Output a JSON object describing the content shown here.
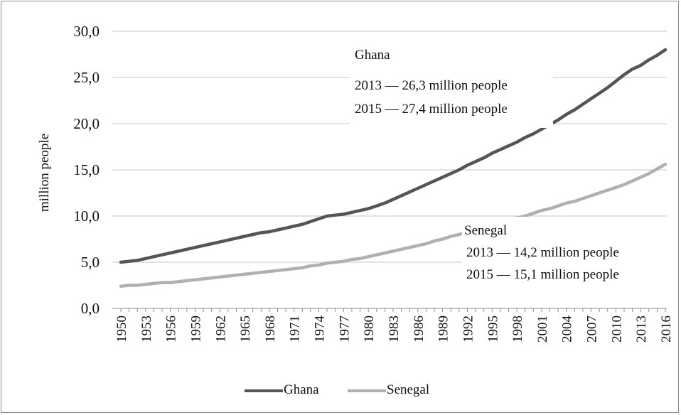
{
  "chart_data": {
    "type": "line",
    "title": "",
    "xlabel": "",
    "ylabel": "million people",
    "ylim": [
      0,
      30
    ],
    "yticks": [
      "0,0",
      "5,0",
      "10,0",
      "15,0",
      "20,0",
      "25,0",
      "30,0"
    ],
    "x_tick_labels": [
      "1950",
      "1953",
      "1956",
      "1959",
      "1962",
      "1965",
      "1968",
      "1971",
      "1974",
      "1977",
      "1980",
      "1983",
      "1986",
      "1989",
      "1992",
      "1995",
      "1998",
      "2001",
      "2004",
      "2007",
      "2010",
      "2013",
      "2016"
    ],
    "grid": "horizontal",
    "legend_position": "bottom",
    "x": [
      1950,
      1951,
      1952,
      1953,
      1954,
      1955,
      1956,
      1957,
      1958,
      1959,
      1960,
      1961,
      1962,
      1963,
      1964,
      1965,
      1966,
      1967,
      1968,
      1969,
      1970,
      1971,
      1972,
      1973,
      1974,
      1975,
      1976,
      1977,
      1978,
      1979,
      1980,
      1981,
      1982,
      1983,
      1984,
      1985,
      1986,
      1987,
      1988,
      1989,
      1990,
      1991,
      1992,
      1993,
      1994,
      1995,
      1996,
      1997,
      1998,
      1999,
      2000,
      2001,
      2002,
      2003,
      2004,
      2005,
      2006,
      2007,
      2008,
      2009,
      2010,
      2011,
      2012,
      2013,
      2014,
      2015,
      2016
    ],
    "series": [
      {
        "name": "Ghana",
        "color": "#555555",
        "values": [
          5.0,
          5.1,
          5.2,
          5.4,
          5.6,
          5.8,
          6.0,
          6.2,
          6.4,
          6.6,
          6.8,
          7.0,
          7.2,
          7.4,
          7.6,
          7.8,
          8.0,
          8.2,
          8.3,
          8.5,
          8.7,
          8.9,
          9.1,
          9.4,
          9.7,
          10.0,
          10.1,
          10.2,
          10.4,
          10.6,
          10.8,
          11.1,
          11.4,
          11.8,
          12.2,
          12.6,
          13.0,
          13.4,
          13.8,
          14.2,
          14.6,
          15.0,
          15.5,
          15.9,
          16.3,
          16.8,
          17.2,
          17.6,
          18.0,
          18.5,
          18.9,
          19.4,
          19.9,
          20.4,
          21.0,
          21.5,
          22.1,
          22.7,
          23.3,
          23.9,
          24.6,
          25.3,
          25.9,
          26.3,
          26.9,
          27.4,
          28.0
        ]
      },
      {
        "name": "Senegal",
        "color": "#b0b0b0",
        "values": [
          2.4,
          2.5,
          2.5,
          2.6,
          2.7,
          2.8,
          2.8,
          2.9,
          3.0,
          3.1,
          3.2,
          3.3,
          3.4,
          3.5,
          3.6,
          3.7,
          3.8,
          3.9,
          4.0,
          4.1,
          4.2,
          4.3,
          4.4,
          4.6,
          4.7,
          4.9,
          5.0,
          5.1,
          5.3,
          5.4,
          5.6,
          5.8,
          6.0,
          6.2,
          6.4,
          6.6,
          6.8,
          7.0,
          7.3,
          7.5,
          7.8,
          8.0,
          8.3,
          8.6,
          8.8,
          9.1,
          9.3,
          9.6,
          9.8,
          10.0,
          10.3,
          10.6,
          10.8,
          11.1,
          11.4,
          11.6,
          11.9,
          12.2,
          12.5,
          12.8,
          13.1,
          13.4,
          13.8,
          14.2,
          14.6,
          15.1,
          15.6
        ]
      }
    ],
    "annotations": {
      "ghana": {
        "title": "Ghana",
        "line1": "2013 — 26,3 million people",
        "line2": "2015 — 27,4 million people"
      },
      "senegal": {
        "title": "Senegal",
        "line1": "2013 — 14,2 million people",
        "line2": "2015 — 15,1 million people"
      }
    },
    "legend": [
      "Ghana",
      "Senegal"
    ]
  }
}
